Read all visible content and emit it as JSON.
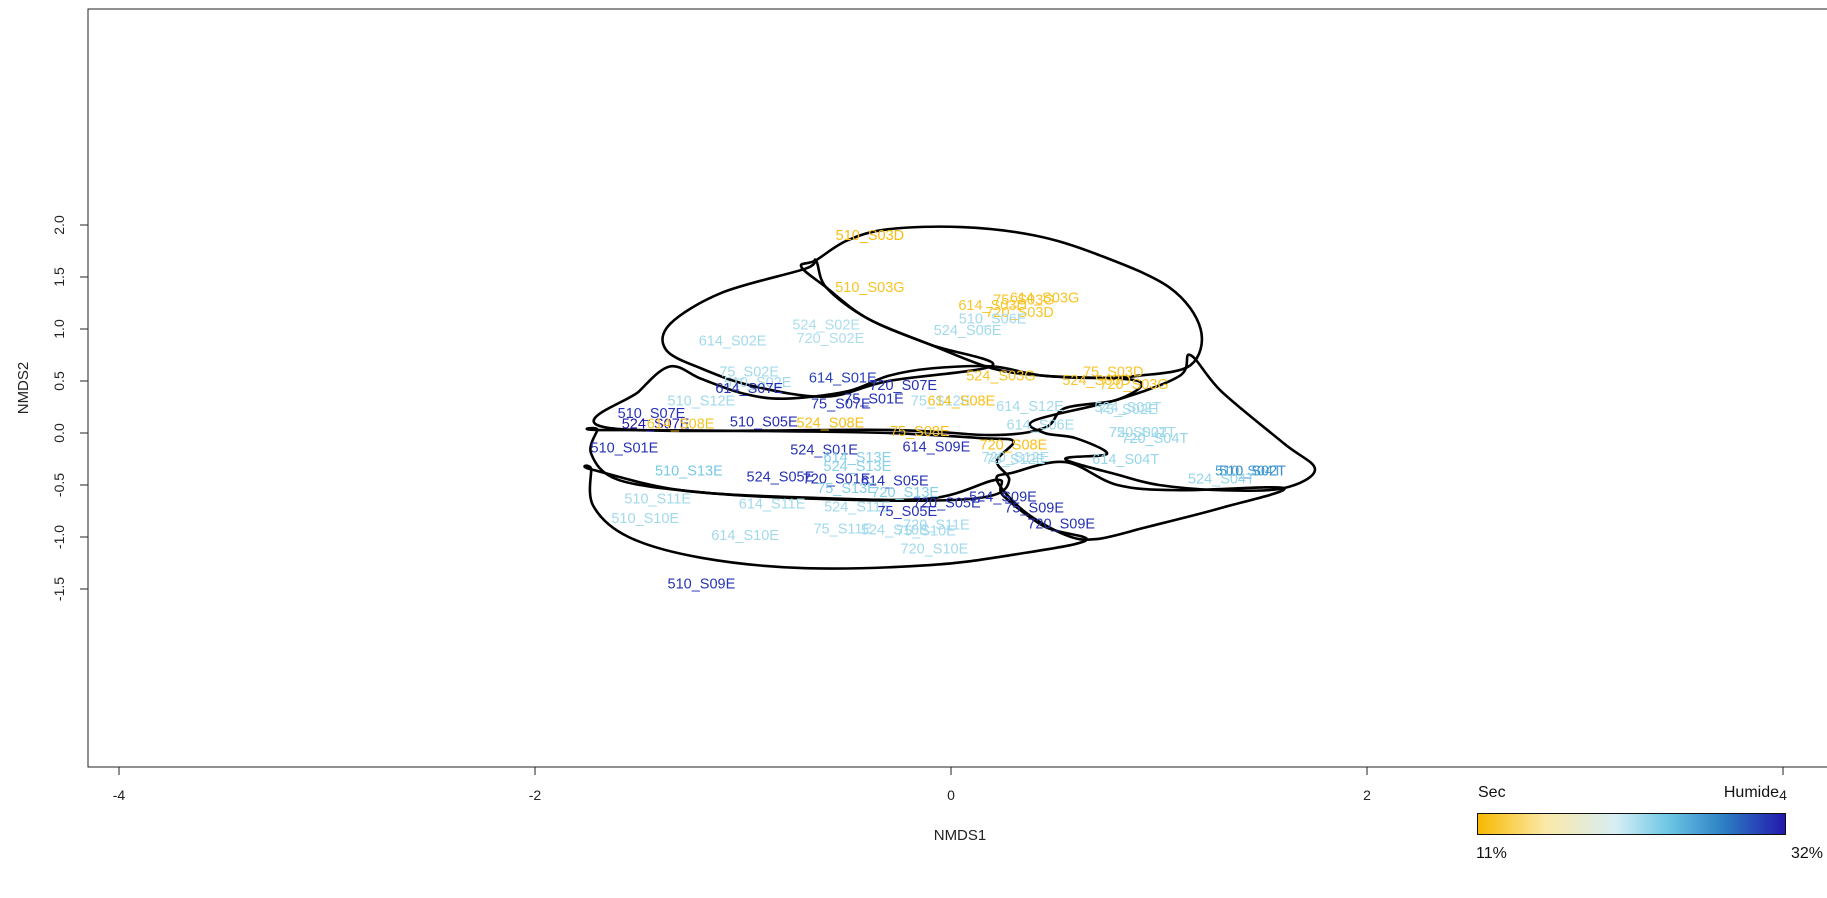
{
  "chart_data": {
    "type": "scatter",
    "title": "",
    "xlabel": "NMDS1",
    "ylabel": "NMDS2",
    "xlim": [
      -4.1,
      4.5
    ],
    "ylim": [
      -1.6,
      2.05
    ],
    "x_ticks": [
      "-4",
      "-2",
      "0",
      "2",
      "4"
    ],
    "y_ticks": [
      "-1.5",
      "-1.0",
      "-0.5",
      "0.0",
      "0.5",
      "1.0",
      "1.5",
      "2.0"
    ],
    "grid": false,
    "colorbar": {
      "low_label": "Sec",
      "high_label": "Humide",
      "min": "11%",
      "max": "32%",
      "colors": [
        "#f7b900",
        "#fbe9a8",
        "#d6eef4",
        "#6cc6e4",
        "#2c7fc4",
        "#2418ad"
      ]
    },
    "points": [
      {
        "label": "510_S03D",
        "x": -0.39,
        "y": 1.89,
        "c": 0.02
      },
      {
        "label": "510_S03G",
        "x": -0.39,
        "y": 1.39,
        "c": 0.04
      },
      {
        "label": "75_S03G",
        "x": 0.35,
        "y": 1.27,
        "c": 0.05
      },
      {
        "label": "614_S03G",
        "x": 0.45,
        "y": 1.29,
        "c": 0.04
      },
      {
        "label": "614_S03D",
        "x": 0.2,
        "y": 1.22,
        "c": 0.05
      },
      {
        "label": "720_S03D",
        "x": 0.33,
        "y": 1.15,
        "c": 0.05
      },
      {
        "label": "510_S06E",
        "x": 0.2,
        "y": 1.09,
        "c": 0.5
      },
      {
        "label": "524_S02E",
        "x": -0.6,
        "y": 1.03,
        "c": 0.48
      },
      {
        "label": "524_S06E",
        "x": 0.08,
        "y": 0.98,
        "c": 0.5
      },
      {
        "label": "720_S02E",
        "x": -0.58,
        "y": 0.9,
        "c": 0.48
      },
      {
        "label": "614_S02E",
        "x": -1.05,
        "y": 0.88,
        "c": 0.5
      },
      {
        "label": "75_S02E",
        "x": -0.97,
        "y": 0.58,
        "c": 0.5
      },
      {
        "label": "614_S01E",
        "x": -0.52,
        "y": 0.52,
        "c": 0.92
      },
      {
        "label": "524_S03G",
        "x": 0.24,
        "y": 0.54,
        "c": 0.05
      },
      {
        "label": "75_S03D",
        "x": 0.78,
        "y": 0.58,
        "c": 0.05
      },
      {
        "label": "524_S03D",
        "x": 0.7,
        "y": 0.5,
        "c": 0.05
      },
      {
        "label": "720_S03G",
        "x": 0.88,
        "y": 0.46,
        "c": 0.05
      },
      {
        "label": "510_S02E",
        "x": -0.93,
        "y": 0.48,
        "c": 0.5
      },
      {
        "label": "720_S07E",
        "x": -0.23,
        "y": 0.45,
        "c": 0.95
      },
      {
        "label": "614_S07E",
        "x": -0.97,
        "y": 0.42,
        "c": 0.95
      },
      {
        "label": "510_S12E",
        "x": -1.2,
        "y": 0.3,
        "c": 0.5
      },
      {
        "label": "75_S01E",
        "x": -0.37,
        "y": 0.32,
        "c": 0.95
      },
      {
        "label": "75_S07E",
        "x": -0.53,
        "y": 0.27,
        "c": 0.95
      },
      {
        "label": "75_S12E",
        "x": -0.05,
        "y": 0.3,
        "c": 0.5
      },
      {
        "label": "614_S08E",
        "x": 0.05,
        "y": 0.3,
        "c": 0.03
      },
      {
        "label": "614_S12E",
        "x": 0.38,
        "y": 0.25,
        "c": 0.5
      },
      {
        "label": "524_S02T",
        "x": 0.85,
        "y": 0.24,
        "c": 0.5
      },
      {
        "label": "75_S02E",
        "x": 0.85,
        "y": 0.22,
        "c": 0.5
      },
      {
        "label": "510_S07E",
        "x": -1.44,
        "y": 0.18,
        "c": 0.95
      },
      {
        "label": "510_S05E",
        "x": -0.9,
        "y": 0.1,
        "c": 0.96
      },
      {
        "label": "524_S08E",
        "x": -0.58,
        "y": 0.09,
        "c": 0.03
      },
      {
        "label": "524_S07E",
        "x": -1.42,
        "y": 0.08,
        "c": 1.0
      },
      {
        "label": "614_S08E",
        "x": -1.3,
        "y": 0.08,
        "c": 0.05
      },
      {
        "label": "614_S06E",
        "x": 0.43,
        "y": 0.07,
        "c": 0.5
      },
      {
        "label": "75_S08E",
        "x": -0.15,
        "y": 0.01,
        "c": 0.03
      },
      {
        "label": "720_S02T",
        "x": 0.92,
        "y": 0.0,
        "c": 0.5
      },
      {
        "label": "75_S02T",
        "x": 0.9,
        "y": 0.0,
        "c": 0.5
      },
      {
        "label": "720_S04T",
        "x": 0.98,
        "y": -0.06,
        "c": 0.52
      },
      {
        "label": "720_S08E",
        "x": 0.3,
        "y": -0.12,
        "c": 0.03
      },
      {
        "label": "614_S09E",
        "x": -0.07,
        "y": -0.14,
        "c": 0.95
      },
      {
        "label": "510_S01E",
        "x": -1.57,
        "y": -0.15,
        "c": 0.95
      },
      {
        "label": "524_S01E",
        "x": -0.61,
        "y": -0.17,
        "c": 0.95
      },
      {
        "label": "720_S12E",
        "x": 0.31,
        "y": -0.24,
        "c": 0.5
      },
      {
        "label": "75_S12E",
        "x": 0.31,
        "y": -0.26,
        "c": 0.5
      },
      {
        "label": "614_S13E",
        "x": -0.45,
        "y": -0.24,
        "c": 0.55
      },
      {
        "label": "614_S04T",
        "x": 0.84,
        "y": -0.26,
        "c": 0.52
      },
      {
        "label": "524_S13E",
        "x": -0.45,
        "y": -0.33,
        "c": 0.55
      },
      {
        "label": "510_S13E",
        "x": -1.26,
        "y": -0.37,
        "c": 0.58
      },
      {
        "label": "510_S04T",
        "x": 1.43,
        "y": -0.37,
        "c": 0.7
      },
      {
        "label": "510_S02T",
        "x": 1.45,
        "y": -0.37,
        "c": 0.75
      },
      {
        "label": "524_S05E",
        "x": -0.82,
        "y": -0.43,
        "c": 0.95
      },
      {
        "label": "720_S01E",
        "x": -0.55,
        "y": -0.45,
        "c": 0.95
      },
      {
        "label": "614_S05E",
        "x": -0.27,
        "y": -0.47,
        "c": 0.95
      },
      {
        "label": "524_S04T",
        "x": 1.3,
        "y": -0.45,
        "c": 0.52
      },
      {
        "label": "75_S13E",
        "x": -0.5,
        "y": -0.54,
        "c": 0.55
      },
      {
        "label": "720_S13E",
        "x": -0.22,
        "y": -0.58,
        "c": 0.55
      },
      {
        "label": "524_S09E",
        "x": 0.25,
        "y": -0.62,
        "c": 0.95
      },
      {
        "label": "510_S11E",
        "x": -1.41,
        "y": -0.64,
        "c": 0.5
      },
      {
        "label": "614_S11E",
        "x": -0.86,
        "y": -0.69,
        "c": 0.5
      },
      {
        "label": "720_S05E",
        "x": -0.02,
        "y": -0.68,
        "c": 0.95
      },
      {
        "label": "524_S11E",
        "x": -0.45,
        "y": -0.72,
        "c": 0.5
      },
      {
        "label": "75_S09E",
        "x": 0.4,
        "y": -0.73,
        "c": 0.95
      },
      {
        "label": "75_S05E",
        "x": -0.21,
        "y": -0.76,
        "c": 0.95
      },
      {
        "label": "510_S10E",
        "x": -1.47,
        "y": -0.83,
        "c": 0.5
      },
      {
        "label": "720_S09E",
        "x": 0.53,
        "y": -0.88,
        "c": 0.95
      },
      {
        "label": "720_S11E",
        "x": -0.07,
        "y": -0.89,
        "c": 0.5
      },
      {
        "label": "75_S11E",
        "x": -0.52,
        "y": -0.93,
        "c": 0.5
      },
      {
        "label": "524_S10E",
        "x": -0.27,
        "y": -0.94,
        "c": 0.5
      },
      {
        "label": "75_S10E",
        "x": -0.12,
        "y": -0.95,
        "c": 0.5
      },
      {
        "label": "614_S10E",
        "x": -0.99,
        "y": -0.99,
        "c": 0.5
      },
      {
        "label": "720_S10E",
        "x": -0.08,
        "y": -1.12,
        "c": 0.5
      },
      {
        "label": "510_S09E",
        "x": -1.2,
        "y": -1.46,
        "c": 0.95
      }
    ],
    "hulls": [
      [
        [
          -0.65,
          1.66
        ],
        [
          -0.5,
          1.85
        ],
        [
          -0.3,
          1.96
        ],
        [
          0.05,
          1.98
        ],
        [
          0.4,
          1.9
        ],
        [
          0.7,
          1.72
        ],
        [
          1.05,
          1.4
        ],
        [
          1.2,
          1.0
        ],
        [
          1.15,
          0.65
        ],
        [
          0.9,
          0.55
        ],
        [
          0.7,
          0.53
        ],
        [
          0.45,
          0.55
        ],
        [
          0.2,
          0.62
        ],
        [
          -0.1,
          0.85
        ],
        [
          -0.4,
          1.1
        ],
        [
          -0.6,
          1.4
        ],
        [
          -0.72,
          1.6
        ]
      ],
      [
        [
          -0.65,
          1.66
        ],
        [
          -0.7,
          1.58
        ],
        [
          -1.1,
          1.35
        ],
        [
          -1.35,
          1.05
        ],
        [
          -1.37,
          0.8
        ],
        [
          -1.2,
          0.62
        ],
        [
          -0.95,
          0.45
        ],
        [
          -0.6,
          0.35
        ],
        [
          -0.3,
          0.5
        ],
        [
          0.2,
          0.65
        ],
        [
          -0.1,
          0.85
        ],
        [
          -0.4,
          1.1
        ],
        [
          -0.6,
          1.4
        ]
      ],
      [
        [
          -1.35,
          0.64
        ],
        [
          -1.5,
          0.4
        ],
        [
          -1.65,
          0.05
        ],
        [
          -0.3,
          0.03
        ],
        [
          0.2,
          -0.02
        ],
        [
          0.45,
          0.05
        ],
        [
          0.55,
          0.24
        ],
        [
          0.8,
          0.32
        ],
        [
          0.9,
          0.5
        ],
        [
          0.45,
          0.55
        ],
        [
          0.2,
          0.64
        ],
        [
          -0.1,
          0.62
        ],
        [
          -0.3,
          0.55
        ],
        [
          -0.5,
          0.4
        ],
        [
          -0.8,
          0.33
        ],
        [
          -1.0,
          0.38
        ],
        [
          -1.2,
          0.52
        ]
      ],
      [
        [
          -1.7,
          0.03
        ],
        [
          -1.73,
          -0.2
        ],
        [
          -1.6,
          -0.45
        ],
        [
          -1.2,
          -0.57
        ],
        [
          -0.7,
          -0.63
        ],
        [
          -0.1,
          -0.65
        ],
        [
          0.2,
          -0.6
        ],
        [
          0.28,
          -0.45
        ],
        [
          0.22,
          -0.27
        ],
        [
          0.3,
          -0.08
        ],
        [
          0.15,
          -0.05
        ],
        [
          -0.3,
          0.0
        ],
        [
          -1.0,
          0.02
        ],
        [
          -1.7,
          0.03
        ]
      ],
      [
        [
          -1.73,
          -0.35
        ],
        [
          -1.72,
          -0.7
        ],
        [
          -1.55,
          -1.0
        ],
        [
          -1.2,
          -1.2
        ],
        [
          -0.7,
          -1.3
        ],
        [
          -0.1,
          -1.27
        ],
        [
          0.3,
          -1.17
        ],
        [
          0.65,
          -1.03
        ],
        [
          0.45,
          -0.9
        ],
        [
          0.25,
          -0.6
        ],
        [
          0.22,
          -0.45
        ],
        [
          -0.1,
          -0.63
        ],
        [
          -0.7,
          -0.62
        ],
        [
          -1.3,
          -0.55
        ],
        [
          -1.73,
          -0.35
        ]
      ],
      [
        [
          0.22,
          -0.45
        ],
        [
          0.35,
          -0.75
        ],
        [
          0.55,
          -0.98
        ],
        [
          0.7,
          -1.02
        ],
        [
          0.95,
          -0.9
        ],
        [
          1.3,
          -0.72
        ],
        [
          1.6,
          -0.53
        ],
        [
          1.1,
          -0.55
        ],
        [
          0.8,
          -0.5
        ],
        [
          0.55,
          -0.28
        ],
        [
          0.3,
          -0.38
        ]
      ],
      [
        [
          0.55,
          -0.25
        ],
        [
          0.8,
          -0.4
        ],
        [
          1.0,
          -0.5
        ],
        [
          1.3,
          -0.55
        ],
        [
          1.6,
          -0.53
        ],
        [
          1.75,
          -0.35
        ],
        [
          1.6,
          -0.1
        ],
        [
          1.3,
          0.4
        ],
        [
          1.15,
          0.75
        ],
        [
          1.1,
          0.55
        ],
        [
          0.8,
          0.32
        ],
        [
          0.4,
          0.12
        ],
        [
          0.45,
          0.0
        ],
        [
          0.6,
          -0.05
        ],
        [
          0.75,
          -0.2
        ]
      ]
    ]
  }
}
